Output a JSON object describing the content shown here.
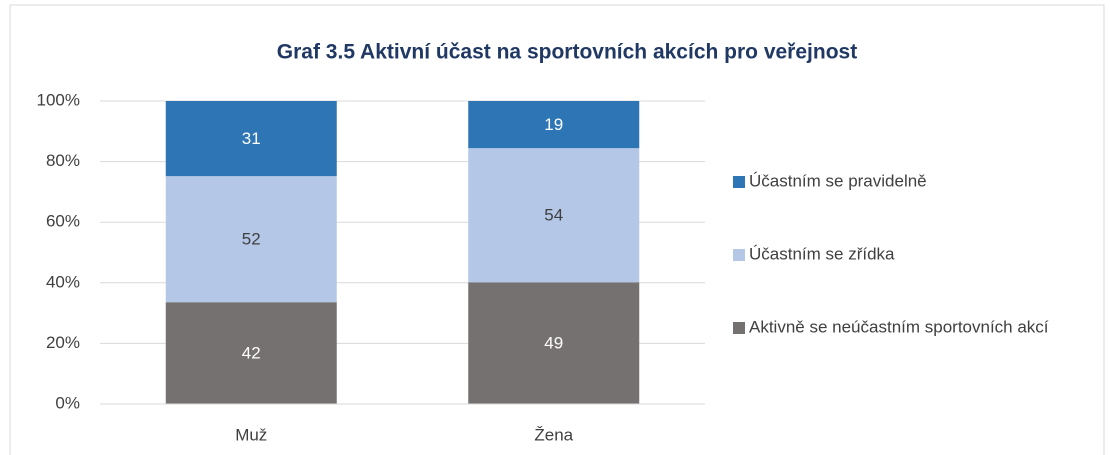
{
  "chart_data": {
    "type": "bar",
    "stacking": "percent",
    "title": "Graf 3.5 Aktivní účast na sportovních akcích pro veřejnost",
    "categories": [
      "Muž",
      "Žena"
    ],
    "series": [
      {
        "name": "Aktivně se neúčastním sportovních akcí",
        "color": "#767171",
        "values": [
          42,
          49
        ]
      },
      {
        "name": "Účastním se zřídka",
        "color": "#b4c7e7",
        "values": [
          52,
          54
        ]
      },
      {
        "name": "Účastním se pravidelně",
        "color": "#2e75b6",
        "values": [
          31,
          19
        ]
      }
    ],
    "ylim": [
      0,
      100
    ],
    "yticks": [
      {
        "value": 0,
        "label": "0%"
      },
      {
        "value": 20,
        "label": "20%"
      },
      {
        "value": 40,
        "label": "40%"
      },
      {
        "value": 60,
        "label": "60%"
      },
      {
        "value": 80,
        "label": "80%"
      },
      {
        "value": 100,
        "label": "100%"
      }
    ],
    "grid": true,
    "legend": "right"
  }
}
